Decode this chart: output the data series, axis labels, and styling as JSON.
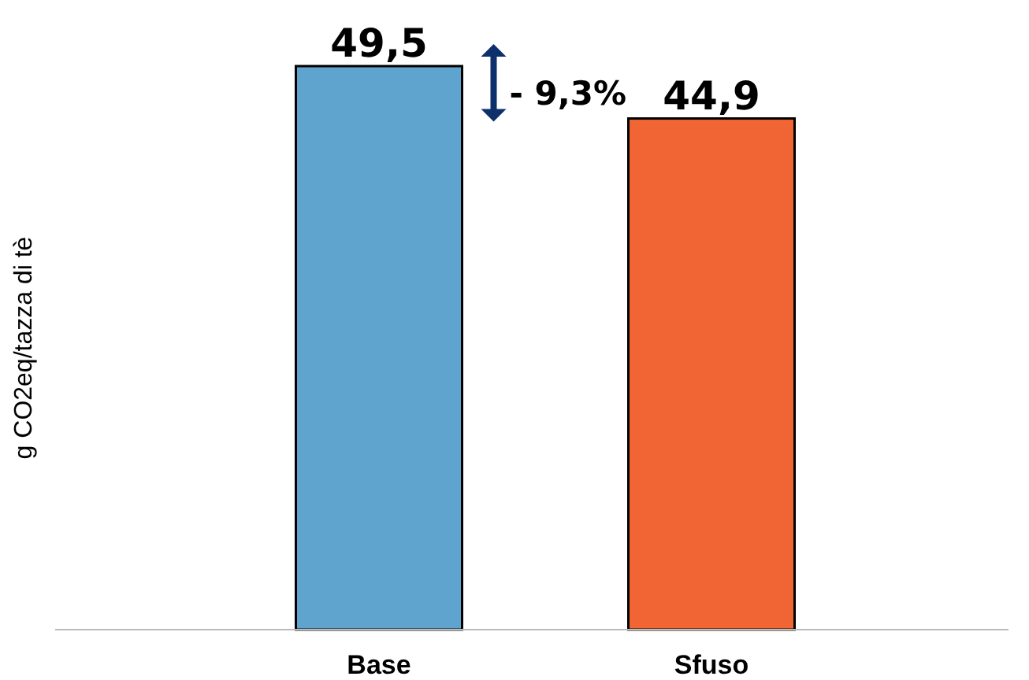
{
  "chart_data": {
    "type": "bar",
    "ylabel": "g CO2eq/tazza di tè",
    "categories": [
      "Base",
      "Sfuso"
    ],
    "values": [
      49.5,
      44.9
    ],
    "colors": [
      "#5fa3cf",
      "#f06533"
    ],
    "value_labels": [
      "49,5",
      "44,9"
    ],
    "annotations": [
      "- 9,3%"
    ],
    "grid": false
  }
}
